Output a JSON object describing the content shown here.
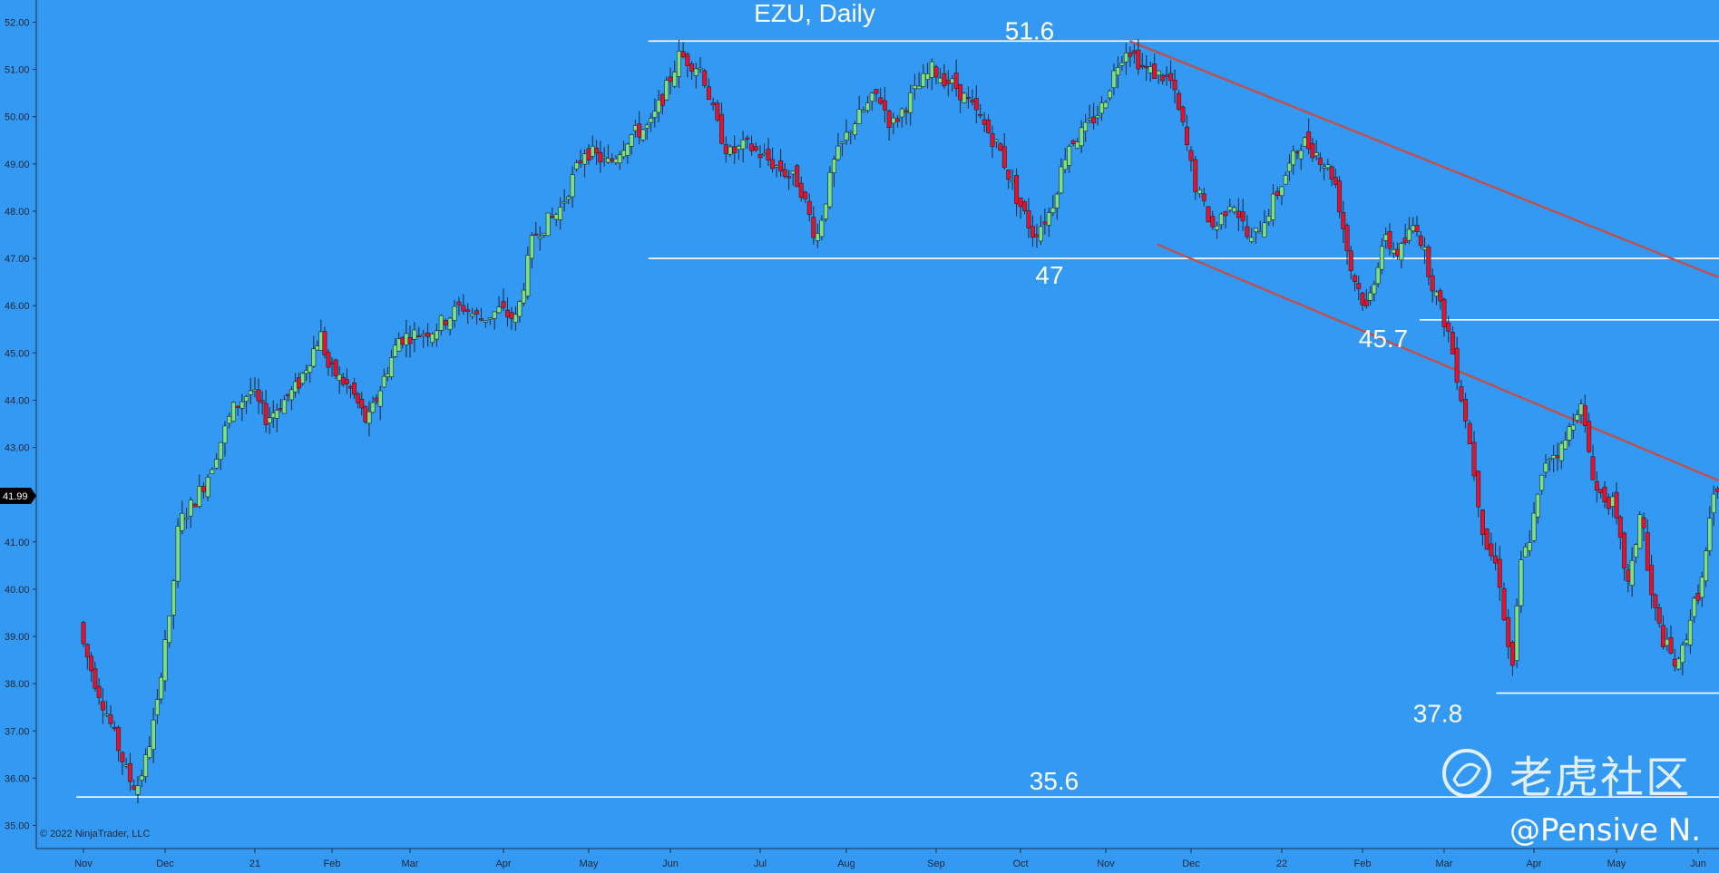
{
  "chart_data": {
    "type": "candlestick",
    "title": "EZU, Daily",
    "ylim": [
      34.7,
      52.5
    ],
    "y_ticks": [
      "35.00",
      "36.00",
      "37.00",
      "38.00",
      "39.00",
      "40.00",
      "41.00",
      "42.00",
      "43.00",
      "44.00",
      "45.00",
      "46.00",
      "47.00",
      "48.00",
      "49.00",
      "50.00",
      "51.00",
      "52.00"
    ],
    "x_ticks": [
      "Nov",
      "Dec",
      "21",
      "Feb",
      "Mar",
      "Apr",
      "May",
      "Jun",
      "Jul",
      "Aug",
      "Sep",
      "Oct",
      "Nov",
      "Dec",
      "22",
      "Feb",
      "Mar",
      "Apr",
      "May",
      "Jun"
    ],
    "last_price": "41.99",
    "levels": [
      {
        "label": "51.6",
        "value": 51.6
      },
      {
        "label": "47",
        "value": 47.0
      },
      {
        "label": "45.7",
        "value": 45.7
      },
      {
        "label": "37.8",
        "value": 37.8
      },
      {
        "label": "35.6",
        "value": 35.6
      }
    ],
    "trend_lines": [
      {
        "name": "upper",
        "from": [
          12.28,
          51.6
        ],
        "to": [
          19.25,
          46.6
        ]
      },
      {
        "name": "lower",
        "from": [
          12.6,
          47.3
        ],
        "to": [
          19.25,
          42.3
        ]
      }
    ],
    "anchors": [
      [
        0,
        39.3
      ],
      [
        0.05,
        38.8
      ],
      [
        0.2,
        38.0
      ],
      [
        0.35,
        37.3
      ],
      [
        0.6,
        36.0
      ],
      [
        0.7,
        35.8
      ],
      [
        0.8,
        36.3
      ],
      [
        0.95,
        37.5
      ],
      [
        1.0,
        38.3
      ],
      [
        1.05,
        39.0
      ],
      [
        1.1,
        39.3
      ],
      [
        1.2,
        41.4
      ],
      [
        1.35,
        41.8
      ],
      [
        1.5,
        42.3
      ],
      [
        1.8,
        43.8
      ],
      [
        2.0,
        44.2
      ],
      [
        2.2,
        43.6
      ],
      [
        2.6,
        44.3
      ],
      [
        2.9,
        45.4
      ],
      [
        3.0,
        44.7
      ],
      [
        3.3,
        44.2
      ],
      [
        3.5,
        43.5
      ],
      [
        3.7,
        44.4
      ],
      [
        3.9,
        45.3
      ],
      [
        4.1,
        45.4
      ],
      [
        4.3,
        45.5
      ],
      [
        4.6,
        46.0
      ],
      [
        4.8,
        45.7
      ],
      [
        5.0,
        45.9
      ],
      [
        5.2,
        45.7
      ],
      [
        5.4,
        47.5
      ],
      [
        5.7,
        48.0
      ],
      [
        6.0,
        49.3
      ],
      [
        6.3,
        49.0
      ],
      [
        6.55,
        49.6
      ],
      [
        6.8,
        49.8
      ],
      [
        7.0,
        50.6
      ],
      [
        7.15,
        51.3
      ],
      [
        7.4,
        51.0
      ],
      [
        7.55,
        49.9
      ],
      [
        7.7,
        49.2
      ],
      [
        7.9,
        49.4
      ],
      [
        8.2,
        49.0
      ],
      [
        8.5,
        48.6
      ],
      [
        8.7,
        47.4
      ],
      [
        8.9,
        49.0
      ],
      [
        9.1,
        49.8
      ],
      [
        9.4,
        50.5
      ],
      [
        9.55,
        49.8
      ],
      [
        9.8,
        50.5
      ],
      [
        10.0,
        51.0
      ],
      [
        10.3,
        50.6
      ],
      [
        10.55,
        50.0
      ],
      [
        10.8,
        49.3
      ],
      [
        11.0,
        48.3
      ],
      [
        11.2,
        47.5
      ],
      [
        11.4,
        48.0
      ],
      [
        11.6,
        49.4
      ],
      [
        11.8,
        49.7
      ],
      [
        12.0,
        50.2
      ],
      [
        12.2,
        51.2
      ],
      [
        12.3,
        51.5
      ],
      [
        12.5,
        51.0
      ],
      [
        12.8,
        50.8
      ],
      [
        12.95,
        49.8
      ],
      [
        13.1,
        48.5
      ],
      [
        13.3,
        47.6
      ],
      [
        13.5,
        48.3
      ],
      [
        13.7,
        47.3
      ],
      [
        13.9,
        48.0
      ],
      [
        14.1,
        48.8
      ],
      [
        14.3,
        49.5
      ],
      [
        14.5,
        49.2
      ],
      [
        14.7,
        48.7
      ],
      [
        14.9,
        46.8
      ],
      [
        15.1,
        45.9
      ],
      [
        15.3,
        47.4
      ],
      [
        15.5,
        47.1
      ],
      [
        15.7,
        47.8
      ],
      [
        15.9,
        46.5
      ],
      [
        16.1,
        45.4
      ],
      [
        16.3,
        43.5
      ],
      [
        16.5,
        41.0
      ],
      [
        16.65,
        40.4
      ],
      [
        16.8,
        38.2
      ],
      [
        16.9,
        40.5
      ],
      [
        17.0,
        41.1
      ],
      [
        17.2,
        42.8
      ],
      [
        17.4,
        43.0
      ],
      [
        17.6,
        44.0
      ],
      [
        17.8,
        42.1
      ],
      [
        18.0,
        41.8
      ],
      [
        18.2,
        40.0
      ],
      [
        18.35,
        41.8
      ],
      [
        18.45,
        40.0
      ],
      [
        18.6,
        39.0
      ],
      [
        18.8,
        38.3
      ],
      [
        18.95,
        39.4
      ],
      [
        19.1,
        40.2
      ],
      [
        19.2,
        41.5
      ],
      [
        19.25,
        41.99
      ]
    ]
  },
  "footer": {
    "copyright": "© 2022 NinjaTrader, LLC"
  },
  "watermark": {
    "text": "老虎社区",
    "handle": "@Pensive N."
  }
}
